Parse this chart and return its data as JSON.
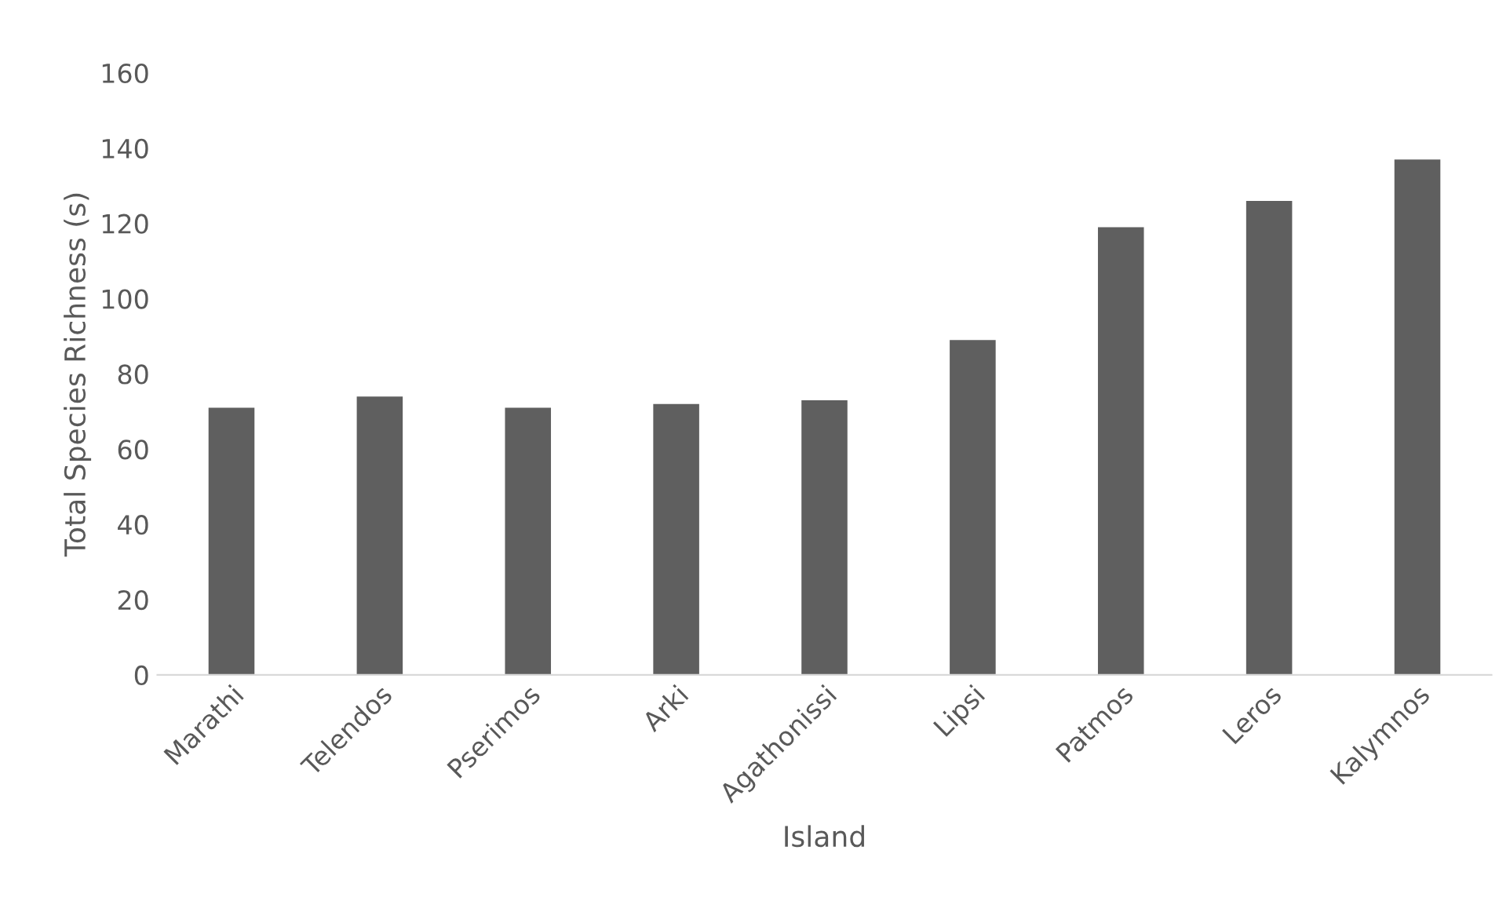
{
  "chart_data": {
    "type": "bar",
    "xlabel": "Island",
    "ylabel": "Total Species Richness (s)",
    "categories": [
      "Marathi",
      "Telendos",
      "Pserimos",
      "Arki",
      "Agathonissi",
      "Lipsi",
      "Patmos",
      "Leros",
      "Kalymnos"
    ],
    "values": [
      71,
      74,
      71,
      72,
      73,
      89,
      119,
      126,
      137
    ],
    "color": "#5f5f5f",
    "ylim": [
      0,
      160
    ],
    "yticks": [
      0,
      20,
      40,
      60,
      80,
      100,
      120,
      140,
      160
    ],
    "grid": false
  }
}
